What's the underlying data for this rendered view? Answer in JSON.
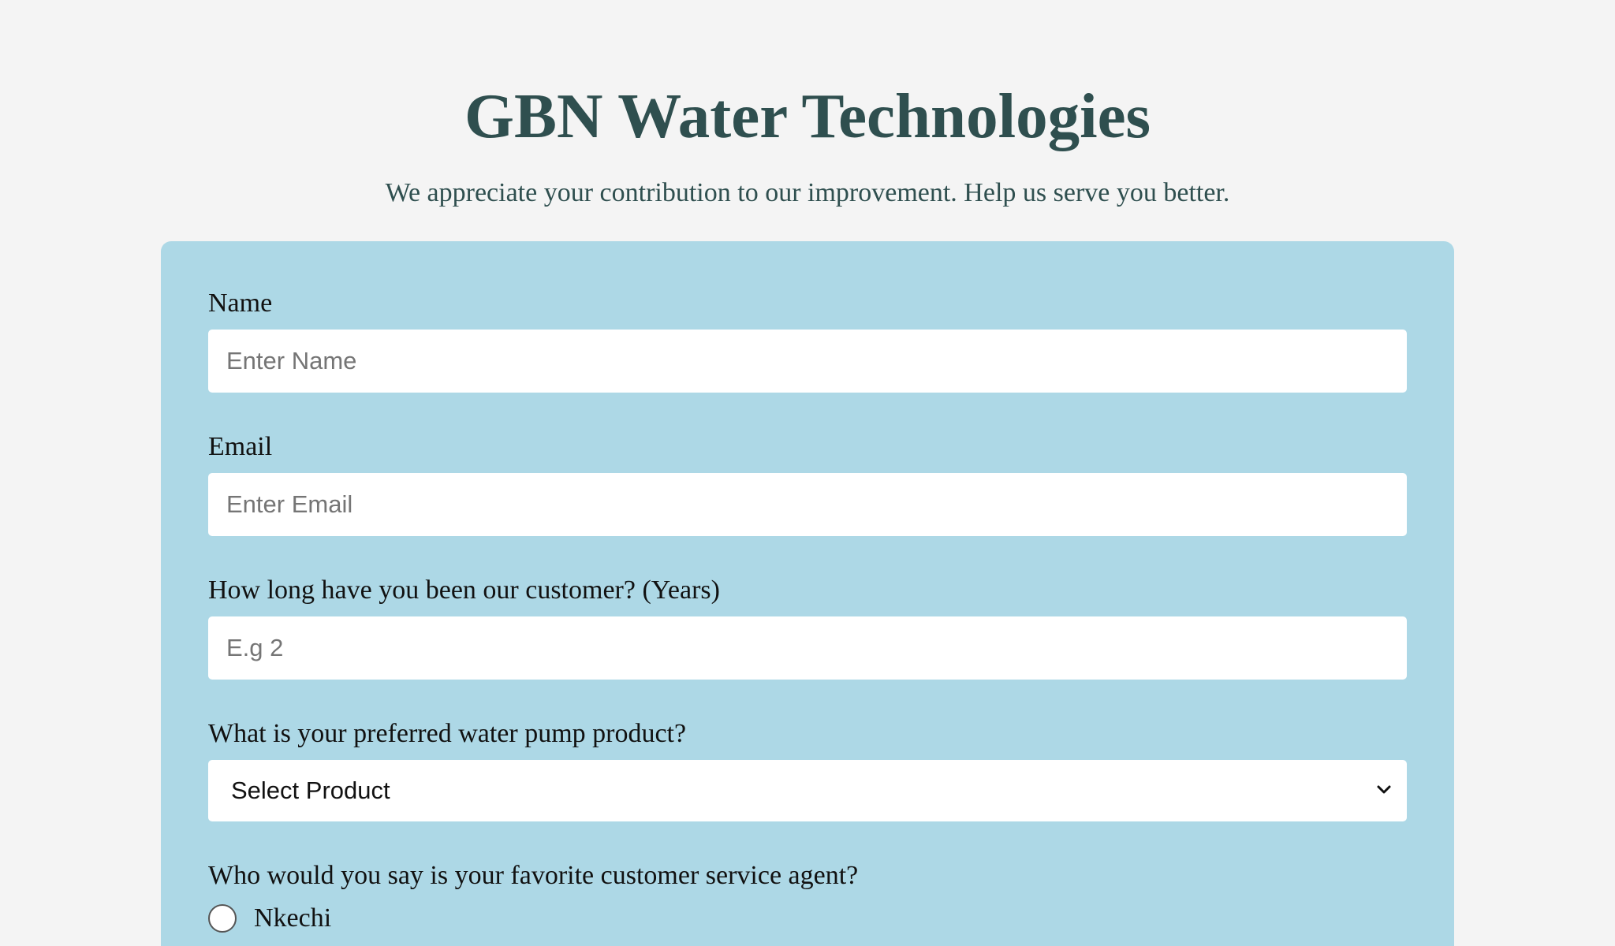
{
  "header": {
    "title": "GBN Water Technologies",
    "subtitle": "We appreciate your contribution to our improvement. Help us serve you better."
  },
  "form": {
    "name": {
      "label": "Name",
      "placeholder": "Enter Name",
      "value": ""
    },
    "email": {
      "label": "Email",
      "placeholder": "Enter Email",
      "value": ""
    },
    "years": {
      "label": "How long have you been our customer? (Years)",
      "placeholder": "E.g 2",
      "value": ""
    },
    "product": {
      "label": "What is your preferred water pump product?",
      "selected": "Select Product"
    },
    "agent": {
      "label": "Who would you say is your favorite customer service agent?",
      "options": [
        {
          "label": "Nkechi",
          "checked": false
        }
      ]
    }
  },
  "colors": {
    "page_background": "#f4f4f4",
    "card_background": "#add8e6",
    "heading": "#2f4f4f"
  },
  "icons": {
    "select_arrow": "chevron-down-icon"
  }
}
